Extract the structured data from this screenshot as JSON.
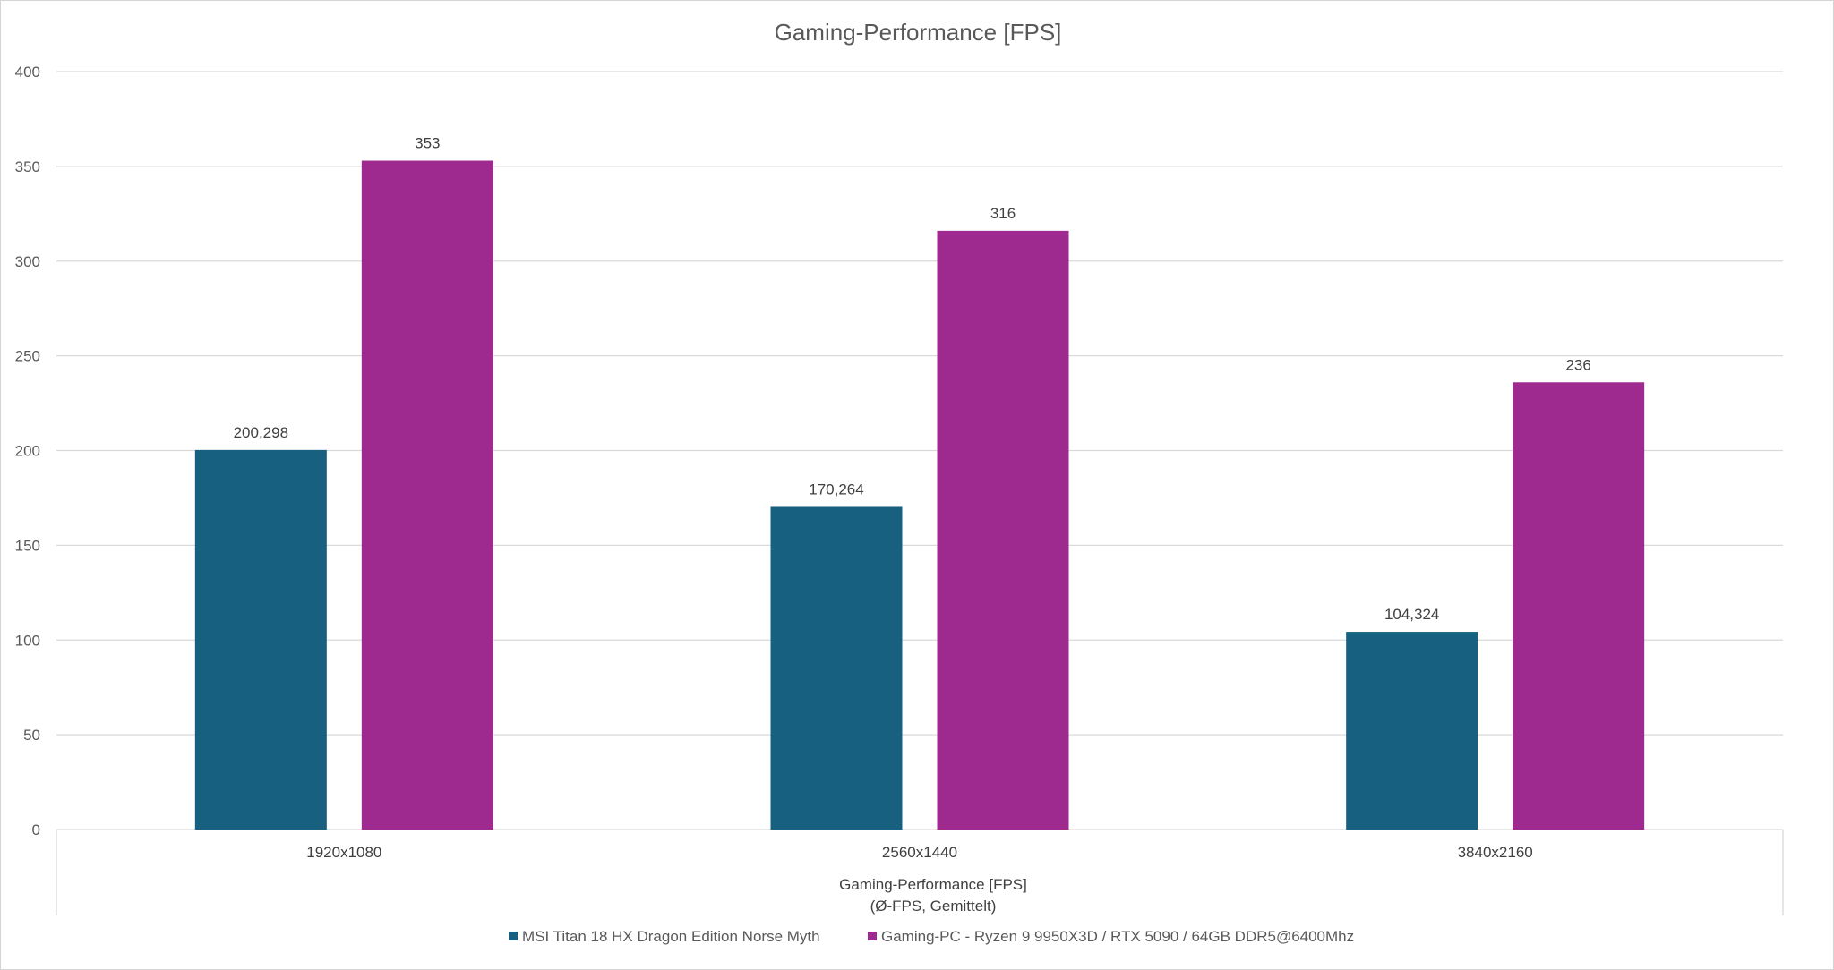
{
  "chart_data": {
    "type": "bar",
    "title": "Gaming-Performance [FPS]",
    "xlabel": "Gaming-Performance  [FPS]",
    "xlabel_sub": "(Ø-FPS, Gemittelt)",
    "ylabel": "",
    "ylim": [
      0,
      400
    ],
    "yticks": [
      0,
      50,
      100,
      150,
      200,
      250,
      300,
      350,
      400
    ],
    "grid": true,
    "legend_position": "bottom",
    "categories": [
      "1920x1080",
      "2560x1440",
      "3840x2160"
    ],
    "series": [
      {
        "name": "MSI Titan 18 HX Dragon Edition Norse Myth",
        "color": "#17607f",
        "values": [
          200.298,
          170.264,
          104.324
        ],
        "labels": [
          "200,298",
          "170,264",
          "104,324"
        ]
      },
      {
        "name": "Gaming-PC - Ryzen 9 9950X3D / RTX 5090 / 64GB DDR5@6400Mhz",
        "color": "#9e2a8f",
        "values": [
          353,
          316,
          236
        ],
        "labels": [
          "353",
          "316",
          "236"
        ]
      }
    ]
  }
}
